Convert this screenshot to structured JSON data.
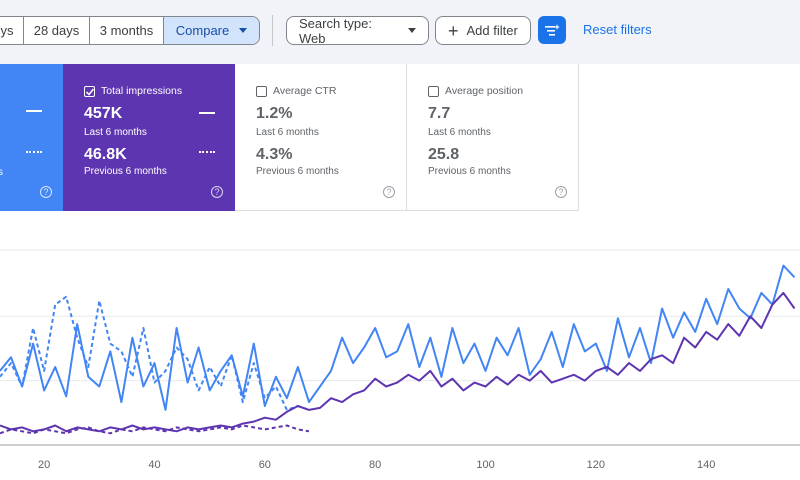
{
  "toolbar": {
    "range_buttons": [
      {
        "label": "ys"
      },
      {
        "label": "28 days"
      },
      {
        "label": "3 months"
      },
      {
        "label": "Compare",
        "selected": true
      }
    ],
    "search_type": "Search type: Web",
    "add_filter": "Add filter",
    "reset_filters": "Reset filters",
    "accent_color": "#1a73e8"
  },
  "metrics": {
    "clicks": {
      "color": "#4285f4",
      "checked": true,
      "partial_text": "s"
    },
    "impressions": {
      "label": "Total impressions",
      "current": "457K",
      "current_period": "Last 6 months",
      "previous": "46.8K",
      "previous_period": "Previous 6 months",
      "checked": true,
      "color": "#5e35b1"
    },
    "ctr": {
      "label": "Average CTR",
      "current": "1.2%",
      "current_period": "Last 6 months",
      "previous": "4.3%",
      "previous_period": "Previous 6 months",
      "checked": false
    },
    "position": {
      "label": "Average position",
      "current": "7.7",
      "current_period": "Last 6 months",
      "previous": "25.8",
      "previous_period": "Previous 6 months",
      "checked": false
    }
  },
  "chart_data": {
    "type": "line",
    "x_ticks": [
      20,
      40,
      60,
      80,
      100,
      120,
      140
    ],
    "xlim": [
      12,
      157
    ],
    "ylim": [
      0,
      100
    ],
    "grid": true,
    "series": [
      {
        "style": "solid",
        "color": "#4285f4",
        "x": [
          12,
          14,
          16,
          18,
          20,
          22,
          24,
          26,
          28,
          30,
          32,
          34,
          36,
          38,
          40,
          42,
          44,
          46,
          48,
          50,
          52,
          54,
          56,
          58,
          60,
          62,
          64,
          66,
          68,
          70,
          72,
          74,
          76,
          78,
          80,
          82,
          84,
          86,
          88,
          90,
          92,
          94,
          96,
          98,
          100,
          102,
          104,
          106,
          108,
          110,
          112,
          114,
          116,
          118,
          120,
          122,
          124,
          126,
          128,
          130,
          132,
          134,
          136,
          138,
          140,
          142,
          144,
          146,
          148,
          150,
          152,
          154,
          156
        ],
        "y": [
          38,
          45,
          30,
          52,
          28,
          40,
          25,
          62,
          35,
          30,
          48,
          22,
          55,
          30,
          42,
          18,
          60,
          32,
          50,
          28,
          38,
          46,
          25,
          52,
          20,
          35,
          24,
          40,
          22,
          30,
          38,
          55,
          42,
          50,
          60,
          45,
          48,
          62,
          40,
          55,
          35,
          60,
          42,
          52,
          38,
          55,
          46,
          60,
          36,
          44,
          58,
          40,
          62,
          48,
          52,
          38,
          65,
          45,
          60,
          42,
          70,
          55,
          68,
          58,
          75,
          62,
          80,
          70,
          65,
          78,
          72,
          92,
          86
        ]
      },
      {
        "style": "dashed",
        "color": "#4285f4",
        "x": [
          12,
          14,
          16,
          18,
          20,
          22,
          24,
          26,
          28,
          30,
          32,
          34,
          36,
          38,
          40,
          42,
          44,
          46,
          48,
          50,
          52,
          54,
          56,
          58,
          60,
          62,
          64,
          66,
          68
        ],
        "y": [
          35,
          42,
          30,
          60,
          38,
          72,
          76,
          55,
          40,
          74,
          52,
          48,
          35,
          60,
          32,
          38,
          50,
          44,
          28,
          40,
          30,
          46,
          22,
          42,
          24,
          30,
          18,
          20,
          18
        ]
      },
      {
        "style": "solid",
        "color": "#5e35b1",
        "x": [
          12,
          14,
          16,
          18,
          20,
          22,
          24,
          26,
          28,
          30,
          32,
          34,
          36,
          38,
          40,
          42,
          44,
          46,
          48,
          50,
          52,
          54,
          56,
          58,
          60,
          62,
          64,
          66,
          68,
          70,
          72,
          74,
          76,
          78,
          80,
          82,
          84,
          86,
          88,
          90,
          92,
          94,
          96,
          98,
          100,
          102,
          104,
          106,
          108,
          110,
          112,
          114,
          116,
          118,
          120,
          122,
          124,
          126,
          128,
          130,
          132,
          134,
          136,
          138,
          140,
          142,
          144,
          146,
          148,
          150,
          152,
          154,
          156
        ],
        "y": [
          10,
          8,
          9,
          7,
          8,
          10,
          7,
          9,
          8,
          7,
          9,
          8,
          10,
          8,
          9,
          8,
          7,
          9,
          8,
          9,
          10,
          9,
          11,
          12,
          14,
          13,
          17,
          20,
          18,
          19,
          24,
          22,
          26,
          28,
          34,
          30,
          32,
          36,
          33,
          38,
          30,
          34,
          28,
          32,
          30,
          35,
          31,
          36,
          33,
          38,
          32,
          34,
          36,
          33,
          38,
          40,
          36,
          42,
          38,
          44,
          46,
          42,
          55,
          50,
          58,
          54,
          62,
          56,
          66,
          60,
          72,
          78,
          70
        ]
      },
      {
        "style": "dashed",
        "color": "#5e35b1",
        "x": [
          12,
          14,
          16,
          18,
          20,
          22,
          24,
          26,
          28,
          30,
          32,
          34,
          36,
          38,
          40,
          42,
          44,
          46,
          48,
          50,
          52,
          54,
          56,
          58,
          60,
          62,
          64,
          66,
          68
        ],
        "y": [
          6,
          8,
          7,
          6,
          8,
          7,
          6,
          8,
          9,
          7,
          6,
          8,
          7,
          9,
          8,
          7,
          9,
          8,
          7,
          8,
          9,
          8,
          10,
          9,
          8,
          9,
          10,
          8,
          7
        ]
      }
    ]
  }
}
